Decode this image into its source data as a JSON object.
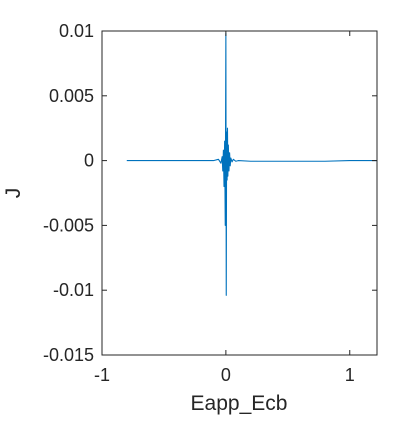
{
  "chart_data": {
    "type": "line",
    "title": "",
    "xlabel": "Eapp_Ecb",
    "ylabel": "J",
    "xlim": [
      -1,
      1.22
    ],
    "ylim": [
      -0.015,
      0.01
    ],
    "x_ticks": [
      -1,
      0,
      1
    ],
    "x_tick_labels": [
      "-1",
      "0",
      "1"
    ],
    "y_ticks": [
      0.01,
      0.005,
      0,
      -0.005,
      -0.01,
      -0.015
    ],
    "y_tick_labels": [
      "0.01",
      "0.005",
      "0",
      "-0.005",
      "-0.01",
      "-0.015"
    ],
    "grid": false,
    "box": true,
    "line_color": "#0072BD",
    "axis_color": "#262626",
    "series": [
      {
        "x": [
          -0.8,
          -0.5,
          -0.2,
          -0.1,
          -0.06,
          -0.04,
          -0.03,
          -0.025,
          -0.02,
          -0.015,
          -0.01,
          -0.005,
          0.0,
          0.003,
          0.006,
          0.01,
          0.013,
          0.016,
          0.02,
          0.025,
          0.03,
          0.035,
          0.04,
          0.05,
          0.06,
          0.08,
          0.1,
          0.2,
          0.5,
          0.8,
          1.0,
          1.22
        ],
        "y": [
          0.0,
          0.0,
          0.0,
          0.0,
          0.0001,
          -0.0002,
          0.0003,
          -0.0008,
          0.0008,
          -0.002,
          0.0015,
          -0.005,
          0.0098,
          -0.0104,
          0.0022,
          -0.0015,
          0.0025,
          -0.0012,
          0.0012,
          -0.0008,
          0.0006,
          -0.0004,
          0.0002,
          -0.0001,
          0.0001,
          -5e-05,
          0.0,
          -5e-05,
          -5e-05,
          -5e-05,
          0.0,
          0.0
        ]
      }
    ]
  }
}
